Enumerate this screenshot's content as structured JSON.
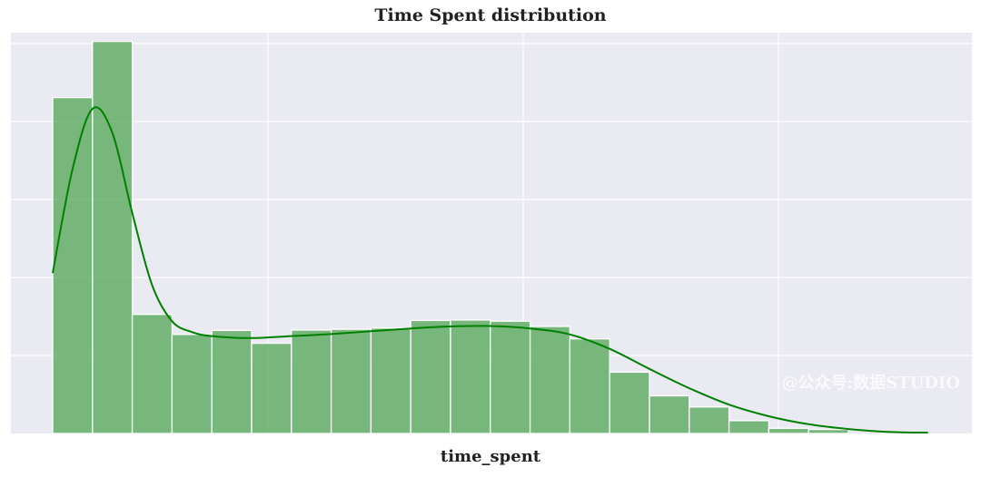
{
  "chart_data": {
    "type": "bar",
    "title": "Time Spent distribution",
    "xlabel": "time_spent",
    "ylabel": "",
    "bin_heights": [
      0.838,
      0.978,
      0.297,
      0.247,
      0.257,
      0.225,
      0.258,
      0.26,
      0.263,
      0.282,
      0.283,
      0.28,
      0.267,
      0.236,
      0.153,
      0.094,
      0.066,
      0.032,
      0.013,
      0.01
    ],
    "kde_curve": {
      "name": "kde",
      "x": [
        0,
        0.5,
        1,
        1.5,
        2,
        2.5,
        3,
        3.5,
        4,
        5,
        6,
        7,
        8,
        9,
        10,
        11,
        12,
        13,
        14,
        15,
        16,
        17,
        18,
        19,
        20,
        21,
        22
      ],
      "y": [
        0.4,
        0.66,
        0.81,
        0.75,
        0.55,
        0.37,
        0.28,
        0.253,
        0.243,
        0.238,
        0.243,
        0.248,
        0.255,
        0.262,
        0.267,
        0.268,
        0.262,
        0.247,
        0.211,
        0.161,
        0.113,
        0.072,
        0.043,
        0.023,
        0.011,
        0.004,
        0.002
      ]
    },
    "ylim": [
      0,
      1
    ],
    "grid": true,
    "colors": {
      "bars": "#5aaa5e",
      "kde": "#008000",
      "background": "#eaeaf2",
      "grid": "#ffffff"
    }
  },
  "watermark": "@公众号:数据STUDIO"
}
